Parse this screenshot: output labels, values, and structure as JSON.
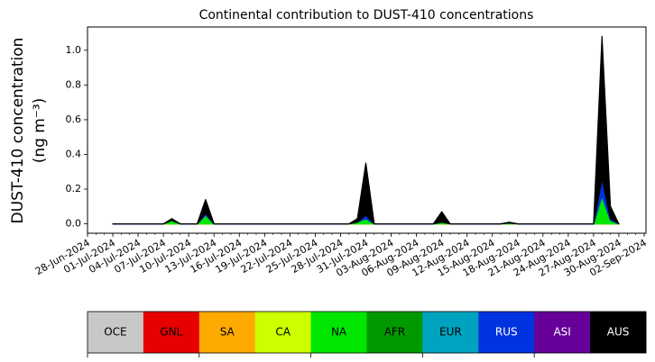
{
  "chart_data": {
    "type": "stacked_area",
    "title": "Continental contribution to DUST-410 concentrations",
    "ylabel": [
      "DUST-410 concentration",
      "(ng m⁻³)"
    ],
    "x": [
      "2024-07-01",
      "2024-07-07",
      "2024-07-08",
      "2024-07-09",
      "2024-07-11",
      "2024-07-12",
      "2024-07-13",
      "2024-07-29",
      "2024-07-30",
      "2024-07-31",
      "2024-08-01",
      "2024-08-08",
      "2024-08-09",
      "2024-08-10",
      "2024-08-16",
      "2024-08-17",
      "2024-08-18",
      "2024-08-27",
      "2024-08-28",
      "2024-08-29",
      "2024-08-30"
    ],
    "series": [
      {
        "name": "OCE",
        "color": "#c8c8c8",
        "values": [
          0,
          0,
          0,
          0,
          0,
          0,
          0,
          0,
          0,
          0,
          0,
          0,
          0,
          0,
          0,
          0,
          0,
          0,
          0,
          0,
          0
        ]
      },
      {
        "name": "GNL",
        "color": "#e60000",
        "values": [
          0,
          0,
          0,
          0,
          0,
          0,
          0,
          0,
          0,
          0,
          0,
          0,
          0,
          0,
          0,
          0,
          0,
          0,
          0,
          0,
          0
        ]
      },
      {
        "name": "SA",
        "color": "#ffaa00",
        "values": [
          0,
          0,
          0,
          0,
          0,
          0,
          0,
          0,
          0,
          0,
          0,
          0,
          0,
          0,
          0,
          0,
          0,
          0,
          0,
          0,
          0
        ]
      },
      {
        "name": "CA",
        "color": "#ccff00",
        "values": [
          0,
          0,
          0,
          0,
          0,
          0,
          0,
          0,
          0,
          0,
          0,
          0,
          0,
          0,
          0,
          0,
          0,
          0,
          0,
          0,
          0
        ]
      },
      {
        "name": "NA",
        "color": "#00e600",
        "values": [
          0,
          0,
          0.02,
          0,
          0,
          0.05,
          0,
          0,
          0.01,
          0.03,
          0,
          0,
          0.01,
          0,
          0,
          0.005,
          0,
          0,
          0.16,
          0.02,
          0
        ]
      },
      {
        "name": "AFR",
        "color": "#009900",
        "values": [
          0,
          0,
          0,
          0,
          0,
          0,
          0,
          0,
          0,
          0,
          0,
          0,
          0,
          0,
          0,
          0,
          0,
          0,
          0,
          0,
          0
        ]
      },
      {
        "name": "EUR",
        "color": "#00a3bf",
        "values": [
          0,
          0,
          0,
          0,
          0,
          0,
          0,
          0,
          0,
          0,
          0,
          0,
          0,
          0,
          0,
          0,
          0,
          0,
          0,
          0,
          0
        ]
      },
      {
        "name": "RUS",
        "color": "#0033e0",
        "values": [
          0,
          0,
          0,
          0,
          0,
          0.01,
          0,
          0,
          0,
          0.02,
          0,
          0,
          0,
          0,
          0,
          0,
          0,
          0,
          0.1,
          0.01,
          0
        ]
      },
      {
        "name": "ASI",
        "color": "#660099",
        "values": [
          0,
          0,
          0,
          0,
          0,
          0,
          0,
          0,
          0,
          0,
          0,
          0,
          0,
          0,
          0,
          0,
          0,
          0,
          0,
          0,
          0
        ]
      },
      {
        "name": "AUS",
        "color": "#000000",
        "values": [
          0,
          0,
          0.01,
          0,
          0,
          0.08,
          0,
          0,
          0.02,
          0.3,
          0,
          0,
          0.06,
          0,
          0,
          0.005,
          0,
          0,
          0.82,
          0.07,
          0
        ]
      }
    ],
    "xlim": [
      "2024-06-28",
      "2024-09-02"
    ],
    "xticks": [
      {
        "value": "2024-06-28",
        "label": "28-Jun-2024"
      },
      {
        "value": "2024-07-01",
        "label": "01-Jul-2024"
      },
      {
        "value": "2024-07-04",
        "label": "04-Jul-2024"
      },
      {
        "value": "2024-07-07",
        "label": "07-Jul-2024"
      },
      {
        "value": "2024-07-10",
        "label": "10-Jul-2024"
      },
      {
        "value": "2024-07-13",
        "label": "13-Jul-2024"
      },
      {
        "value": "2024-07-16",
        "label": "16-Jul-2024"
      },
      {
        "value": "2024-07-19",
        "label": "19-Jul-2024"
      },
      {
        "value": "2024-07-22",
        "label": "22-Jul-2024"
      },
      {
        "value": "2024-07-25",
        "label": "25-Jul-2024"
      },
      {
        "value": "2024-07-28",
        "label": "28-Jul-2024"
      },
      {
        "value": "2024-07-31",
        "label": "31-Jul-2024"
      },
      {
        "value": "2024-08-03",
        "label": "03-Aug-2024"
      },
      {
        "value": "2024-08-06",
        "label": "06-Aug-2024"
      },
      {
        "value": "2024-08-09",
        "label": "09-Aug-2024"
      },
      {
        "value": "2024-08-12",
        "label": "12-Aug-2024"
      },
      {
        "value": "2024-08-15",
        "label": "15-Aug-2024"
      },
      {
        "value": "2024-08-18",
        "label": "18-Aug-2024"
      },
      {
        "value": "2024-08-21",
        "label": "21-Aug-2024"
      },
      {
        "value": "2024-08-24",
        "label": "24-Aug-2024"
      },
      {
        "value": "2024-08-27",
        "label": "27-Aug-2024"
      },
      {
        "value": "2024-08-30",
        "label": "30-Aug-2024"
      },
      {
        "value": "2024-09-02",
        "label": "02-Sep-2024"
      }
    ],
    "ylim": [
      -0.054,
      1.134
    ],
    "yticks": [
      {
        "value": 0,
        "label": "0.0"
      },
      0.2,
      0.4,
      0.6,
      0.8,
      {
        "value": 1,
        "label": "1.0"
      }
    ]
  }
}
